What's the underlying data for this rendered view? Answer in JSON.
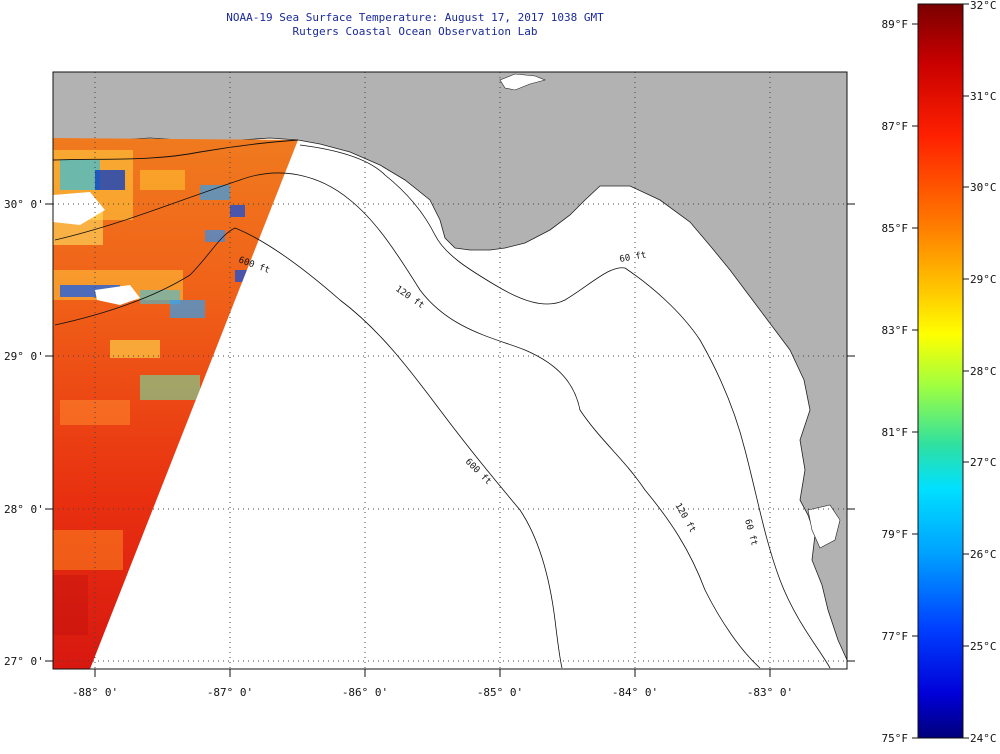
{
  "header": {
    "title_line1": "NOAA-19 Sea Surface Temperature:  August 17, 2017 1038 GMT",
    "title_line2": "Rutgers Coastal Ocean Observation Lab"
  },
  "axes": {
    "lat_labels": [
      "30° 0'",
      "29° 0'",
      "28° 0'",
      "27° 0'"
    ],
    "lon_labels": [
      "-88° 0'",
      "-87° 0'",
      "-86° 0'",
      "-85° 0'",
      "-84° 0'",
      "-83° 0'"
    ]
  },
  "contours": {
    "labels": [
      "600 ft",
      "120 ft",
      "60 ft",
      "600 ft",
      "120 ft",
      "60 ft"
    ]
  },
  "colorbar": {
    "fahrenheit_labels": [
      "89°F",
      "87°F",
      "85°F",
      "83°F",
      "81°F",
      "79°F",
      "77°F",
      "75°F"
    ],
    "celsius_labels": [
      "32°C",
      "31°C",
      "30°C",
      "29°C",
      "28°C",
      "27°C",
      "26°C",
      "25°C",
      "24°C"
    ]
  },
  "colors": {
    "land": "#b2b2b2",
    "ocean_nodata": "#ffffff",
    "title_text": "#1a2a9a",
    "sst_warm": "#e81c10",
    "sst_cool": "#2090f0"
  },
  "map_data": {
    "type": "sst_map",
    "lat_range": [
      26.97,
      30.83
    ],
    "lon_range": [
      -88.27,
      -82.4
    ],
    "color_scale_c": [
      24,
      32
    ],
    "color_scale_f": [
      75,
      89.6
    ]
  }
}
